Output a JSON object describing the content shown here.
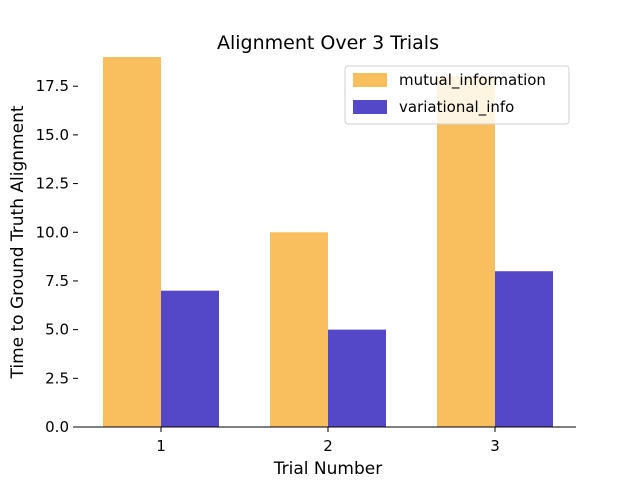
{
  "chart_data": {
    "type": "bar",
    "title": "Alignment Over 3 Trials",
    "xlabel": "Trial Number",
    "ylabel": "Time to Ground Truth Alignment",
    "categories": [
      "1",
      "2",
      "3"
    ],
    "series": [
      {
        "name": "mutual_information",
        "values": [
          19,
          10,
          18
        ],
        "color": "#F9BF5E"
      },
      {
        "name": "variational_info",
        "values": [
          7,
          5,
          8
        ],
        "color": "#5548C8"
      }
    ],
    "ylim": [
      0,
      19
    ],
    "yticks": [
      0.0,
      2.5,
      5.0,
      7.5,
      10.0,
      12.5,
      15.0,
      17.5
    ],
    "ytick_labels": [
      "0.0",
      "2.5",
      "5.0",
      "7.5",
      "10.0",
      "12.5",
      "15.0",
      "17.5"
    ],
    "legend_position": "top-right",
    "grid": false
  }
}
